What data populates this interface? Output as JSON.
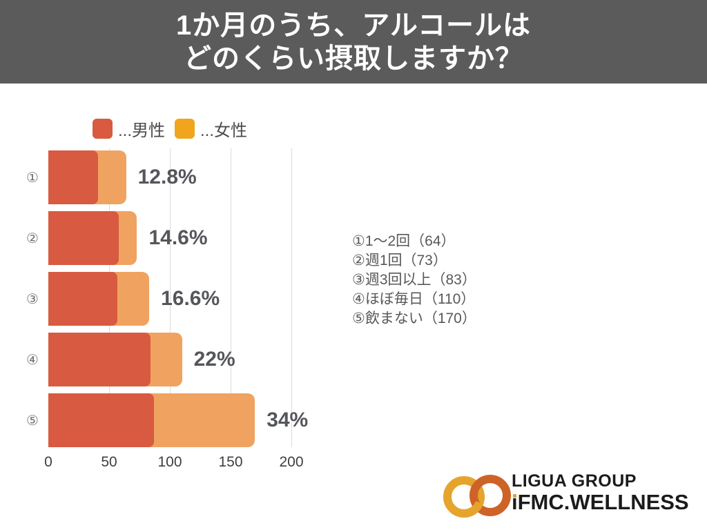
{
  "title": {
    "line1": "1か月のうち、アルコールは",
    "line2": "どのくらい摂取しますか？"
  },
  "legend": {
    "male": {
      "label": "...男性",
      "color": "#D85A40"
    },
    "female": {
      "label": "...女性",
      "color": "#F0A51D"
    }
  },
  "chart_data": {
    "type": "bar",
    "orientation": "horizontal-stacked",
    "title": "1か月のうち、アルコールはどのくらい摂取しますか？",
    "categories": [
      "①",
      "②",
      "③",
      "④",
      "⑤"
    ],
    "series": [
      {
        "name": "男性",
        "color": "#D85A40",
        "values": [
          41,
          58,
          57,
          84,
          87
        ]
      },
      {
        "name": "女性",
        "color": "#F0A361",
        "values": [
          23,
          15,
          26,
          26,
          83
        ]
      }
    ],
    "totals": [
      64,
      73,
      83,
      110,
      170
    ],
    "percent_labels": [
      "12.8%",
      "14.6%",
      "16.6%",
      "22%",
      "34%"
    ],
    "xlim": [
      0,
      200
    ],
    "xticks": [
      0,
      50,
      100,
      150,
      200
    ],
    "grid": true,
    "legend_position": "top-left"
  },
  "annotations": {
    "items": [
      "①1〜2回（64）",
      "②週1回（73）",
      "③週3回以上（83）",
      "④ほぼ毎日（110）",
      "⑤飲まない（170）"
    ]
  },
  "logo": {
    "group_name": "LIGUA GROUP",
    "brand_i": "ı",
    "brand_rest": "FMC.WELLNESS",
    "ring_gold": "#E5A42C",
    "ring_orange": "#CE6327"
  }
}
